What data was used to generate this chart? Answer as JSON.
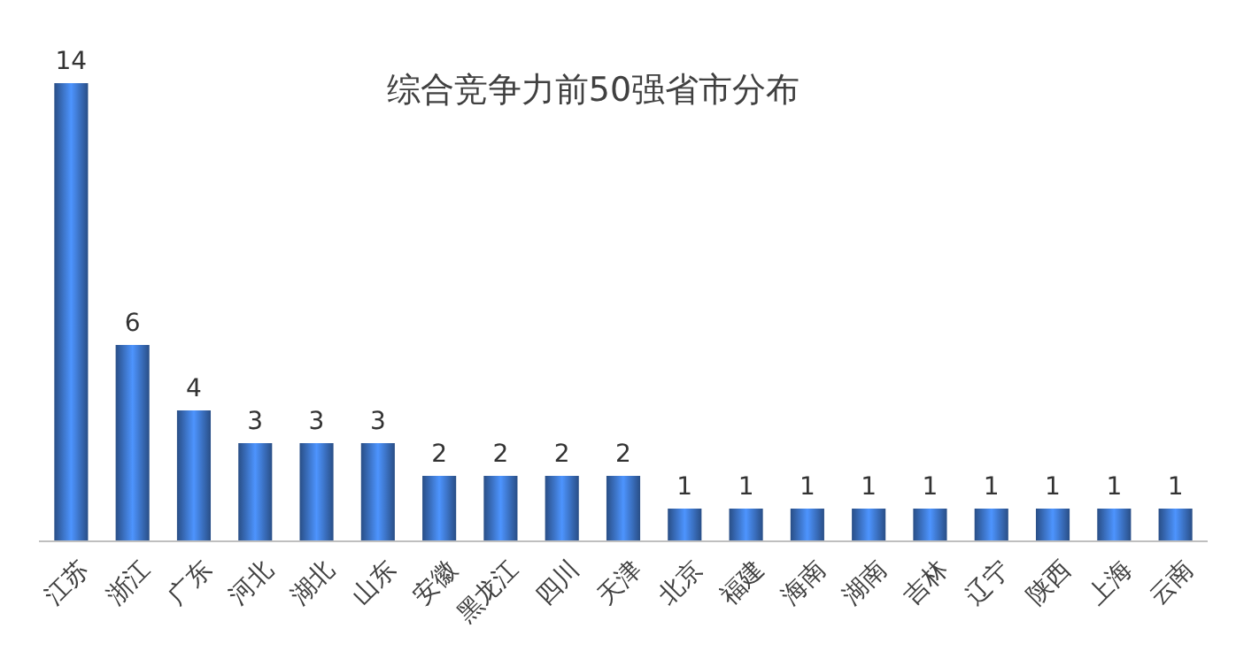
{
  "chart_data": {
    "type": "bar",
    "title": "综合竞争力前50强省市分布",
    "categories": [
      "江苏",
      "浙江",
      "广东",
      "河北",
      "湖北",
      "山东",
      "安徽",
      "黑龙江",
      "四川",
      "天津",
      "北京",
      "福建",
      "海南",
      "湖南",
      "吉林",
      "辽宁",
      "陕西",
      "上海",
      "云南"
    ],
    "values": [
      14,
      6,
      4,
      3,
      3,
      3,
      2,
      2,
      2,
      2,
      1,
      1,
      1,
      1,
      1,
      1,
      1,
      1,
      1
    ],
    "color": "#3a6fbf",
    "data_labels": true
  }
}
